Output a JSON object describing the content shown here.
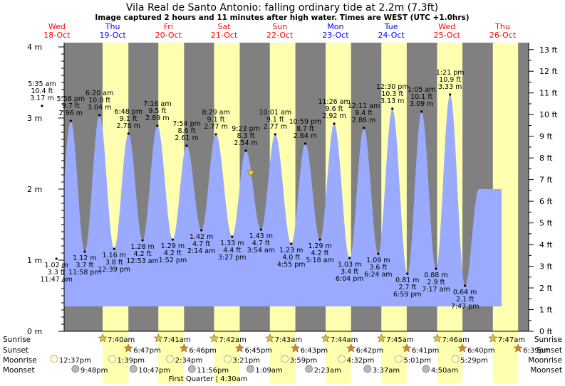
{
  "header": {
    "title": "Vila Real de Santo Antonio: falling  ordinary tide at 2.2m (7.3ft)",
    "subtitle": "Image captured 2 hours and 11 minutes after high water. Times are WEST (UTC +1.0hrs)"
  },
  "colors": {
    "day": "#ffffb0",
    "night": "#808080",
    "tide": "#9aaaff",
    "weekday_red": "#ff0000",
    "weekday_blue": "#0000ff",
    "marker": "#e8d820"
  },
  "chart_data": {
    "type": "area",
    "title": "Vila Real de Santo Antonio: falling  ordinary tide at 2.2m (7.3ft)",
    "y_left_unit": "m",
    "y_left_ticks": [
      "0 m",
      "1 m",
      "2 m",
      "3 m",
      "4 m"
    ],
    "y_right_unit": "ft",
    "y_right_ticks": [
      "0 ft",
      "1 ft",
      "2 ft",
      "3 ft",
      "4 ft",
      "5 ft",
      "6 ft",
      "7 ft",
      "8 ft",
      "9 ft",
      "10 ft",
      "11 ft",
      "12 ft",
      "13 ft"
    ],
    "ylim_m": [
      0,
      4.1
    ],
    "days": [
      {
        "dow": "Wed",
        "date": "18-Oct",
        "color": "red"
      },
      {
        "dow": "Thu",
        "date": "19-Oct",
        "color": "blue"
      },
      {
        "dow": "Fri",
        "date": "20-Oct",
        "color": "red"
      },
      {
        "dow": "Sat",
        "date": "21-Oct",
        "color": "red"
      },
      {
        "dow": "Sun",
        "date": "22-Oct",
        "color": "red"
      },
      {
        "dow": "Mon",
        "date": "23-Oct",
        "color": "blue"
      },
      {
        "dow": "Tue",
        "date": "24-Oct",
        "color": "blue"
      },
      {
        "dow": "Wed",
        "date": "25-Oct",
        "color": "red"
      },
      {
        "dow": "Thu",
        "date": "26-Oct",
        "color": "red"
      }
    ],
    "extremes": [
      {
        "type": "high",
        "time": "5:35 am",
        "m": 3.17,
        "ft": "10.4 ft",
        "label_m": "3.17 m",
        "day": 0.2326
      },
      {
        "type": "low",
        "time": "11:47 am",
        "m": 1.02,
        "ft": "3.3 ft",
        "label_m": "1.02 m",
        "day": 0.491
      },
      {
        "type": "high",
        "time": "5:58 pm",
        "m": 2.96,
        "ft": "9.7 ft",
        "label_m": "2.96 m",
        "day": 0.7486
      },
      {
        "type": "low",
        "time": "11:58 pm",
        "m": 1.12,
        "ft": "3.7 ft",
        "label_m": "1.12 m",
        "day": 0.9986
      },
      {
        "type": "high",
        "time": "6:20 am",
        "m": 3.04,
        "ft": "10.0 ft",
        "label_m": "3.04 m",
        "day": 1.2639
      },
      {
        "type": "low",
        "time": "12:39 pm",
        "m": 1.16,
        "ft": "3.8 ft",
        "label_m": "1.16 m",
        "day": 1.5271
      },
      {
        "type": "high",
        "time": "6:48 pm",
        "m": 2.78,
        "ft": "9.1 ft",
        "label_m": "2.78 m",
        "day": 1.7833
      },
      {
        "type": "low",
        "time": "12:53 am",
        "m": 1.28,
        "ft": "4.2 ft",
        "label_m": "1.28 m",
        "day": 2.0368
      },
      {
        "type": "high",
        "time": "7:16 am",
        "m": 2.89,
        "ft": "9.5 ft",
        "label_m": "2.89 m",
        "day": 2.3028
      },
      {
        "type": "low",
        "time": "1:52 pm",
        "m": 1.29,
        "ft": "4.2 ft",
        "label_m": "1.29 m",
        "day": 2.5778
      },
      {
        "type": "high",
        "time": "7:54 pm",
        "m": 2.61,
        "ft": "8.6 ft",
        "label_m": "2.61 m",
        "day": 2.8292
      },
      {
        "type": "low",
        "time": "2:14 am",
        "m": 1.42,
        "ft": "4.7 ft",
        "label_m": "1.42 m",
        "day": 3.0931
      },
      {
        "type": "high",
        "time": "8:29 am",
        "m": 2.77,
        "ft": "9.1 ft",
        "label_m": "2.77 m",
        "day": 3.3535
      },
      {
        "type": "low",
        "time": "3:27 pm",
        "m": 1.33,
        "ft": "4.4 ft",
        "label_m": "1.33 m",
        "day": 3.6438
      },
      {
        "type": "high",
        "time": "9:23 pm",
        "m": 2.54,
        "ft": "8.3 ft",
        "label_m": "2.54 m",
        "day": 3.891
      },
      {
        "type": "low",
        "time": "3:54 am",
        "m": 1.43,
        "ft": "4.7 ft",
        "label_m": "1.43 m",
        "day": 4.1625
      },
      {
        "type": "high",
        "time": "10:01 am",
        "m": 2.77,
        "ft": "9.1 ft",
        "label_m": "2.77 m",
        "day": 4.4174
      },
      {
        "type": "low",
        "time": "4:55 pm",
        "m": 1.23,
        "ft": "4.0 ft",
        "label_m": "1.23 m",
        "day": 4.7049
      },
      {
        "type": "high",
        "time": "10:59 pm",
        "m": 2.64,
        "ft": "8.7 ft",
        "label_m": "2.64 m",
        "day": 4.9576
      },
      {
        "type": "low",
        "time": "5:18 am",
        "m": 1.29,
        "ft": "4.2 ft",
        "label_m": "1.29 m",
        "day": 5.2208
      },
      {
        "type": "high",
        "time": "11:26 am",
        "m": 2.92,
        "ft": "9.6 ft",
        "label_m": "2.92 m",
        "day": 5.4764
      },
      {
        "type": "low",
        "time": "6:04 pm",
        "m": 1.03,
        "ft": "3.4 ft",
        "label_m": "1.03 m",
        "day": 5.7528
      },
      {
        "type": "high",
        "time": "12:11 am",
        "m": 2.86,
        "ft": "9.4 ft",
        "label_m": "2.86 m",
        "day": 6.0076
      },
      {
        "type": "low",
        "time": "6:24 am",
        "m": 1.09,
        "ft": "3.6 ft",
        "label_m": "1.09 m",
        "day": 6.2667
      },
      {
        "type": "high",
        "time": "12:30 pm",
        "m": 3.13,
        "ft": "10.3 ft",
        "label_m": "3.13 m",
        "day": 6.5208
      },
      {
        "type": "low",
        "time": "6:59 pm",
        "m": 0.81,
        "ft": "2.7 ft",
        "label_m": "0.81 m",
        "day": 6.791
      },
      {
        "type": "high",
        "time": "1:05 am",
        "m": 3.09,
        "ft": "10.1 ft",
        "label_m": "3.09 m",
        "day": 7.0451
      },
      {
        "type": "low",
        "time": "7:17 am",
        "m": 0.88,
        "ft": "2.9 ft",
        "label_m": "0.88 m",
        "day": 7.3035
      },
      {
        "type": "high",
        "time": "1:21 pm",
        "m": 3.33,
        "ft": "10.9 ft",
        "label_m": "3.33 m",
        "day": 7.5563
      },
      {
        "type": "low",
        "time": "7:47 pm",
        "m": 0.64,
        "ft": "2.1 ft",
        "label_m": "0.64 m",
        "day": 7.8243
      }
    ],
    "current": {
      "m": 2.2,
      "day": 3.9819
    },
    "sun": {
      "sunrise": [
        "7:40am",
        "7:41am",
        "7:42am",
        "7:43am",
        "7:44am",
        "7:45am",
        "7:46am",
        "7:47am"
      ],
      "sunset": [
        "6:47pm",
        "6:46pm",
        "6:45pm",
        "6:43pm",
        "6:42pm",
        "6:41pm",
        "6:40pm",
        "6:39pm"
      ],
      "sunrise_days": [
        1.3194,
        2.3201,
        3.3208,
        4.3215,
        5.3222,
        6.3229,
        7.3236,
        8.3243
      ],
      "sunset_days": [
        0.7826,
        1.7819,
        2.7813,
        3.7799,
        4.7792,
        5.7785,
        6.7778,
        7.7771
      ]
    },
    "moon": {
      "moonrise": [
        {
          "time": "12:37pm",
          "day": 1.5257
        },
        {
          "time": "1:39pm",
          "day": 2.5688
        },
        {
          "time": "2:34pm",
          "day": 3.6069
        },
        {
          "time": "3:21pm",
          "day": 4.6396
        },
        {
          "time": "3:59pm",
          "day": 5.666
        },
        {
          "time": "4:32pm",
          "day": 6.6889
        },
        {
          "time": "5:01pm",
          "day": 7.709
        },
        {
          "time": "5:29pm",
          "day": 8.7285
        }
      ],
      "moonset": [
        {
          "time": "9:48pm",
          "day": 1.9083
        },
        {
          "time": "10:47pm",
          "day": 2.9493
        },
        {
          "time": "11:56pm",
          "day": 3.9972
        },
        {
          "time": "1:09am",
          "day": 5.0479
        },
        {
          "time": "2:23am",
          "day": 6.0993
        },
        {
          "time": "3:37am",
          "day": 7.1507
        },
        {
          "time": "4:50am",
          "day": 8.2014
        }
      ],
      "phase": {
        "label": "First Quarter",
        "time": "4:30am",
        "day": 4.1875
      }
    }
  },
  "legend": {
    "sunrise": "Sunrise",
    "sunset": "Sunset",
    "moonrise": "Moonrise",
    "moonset": "Moonset"
  }
}
